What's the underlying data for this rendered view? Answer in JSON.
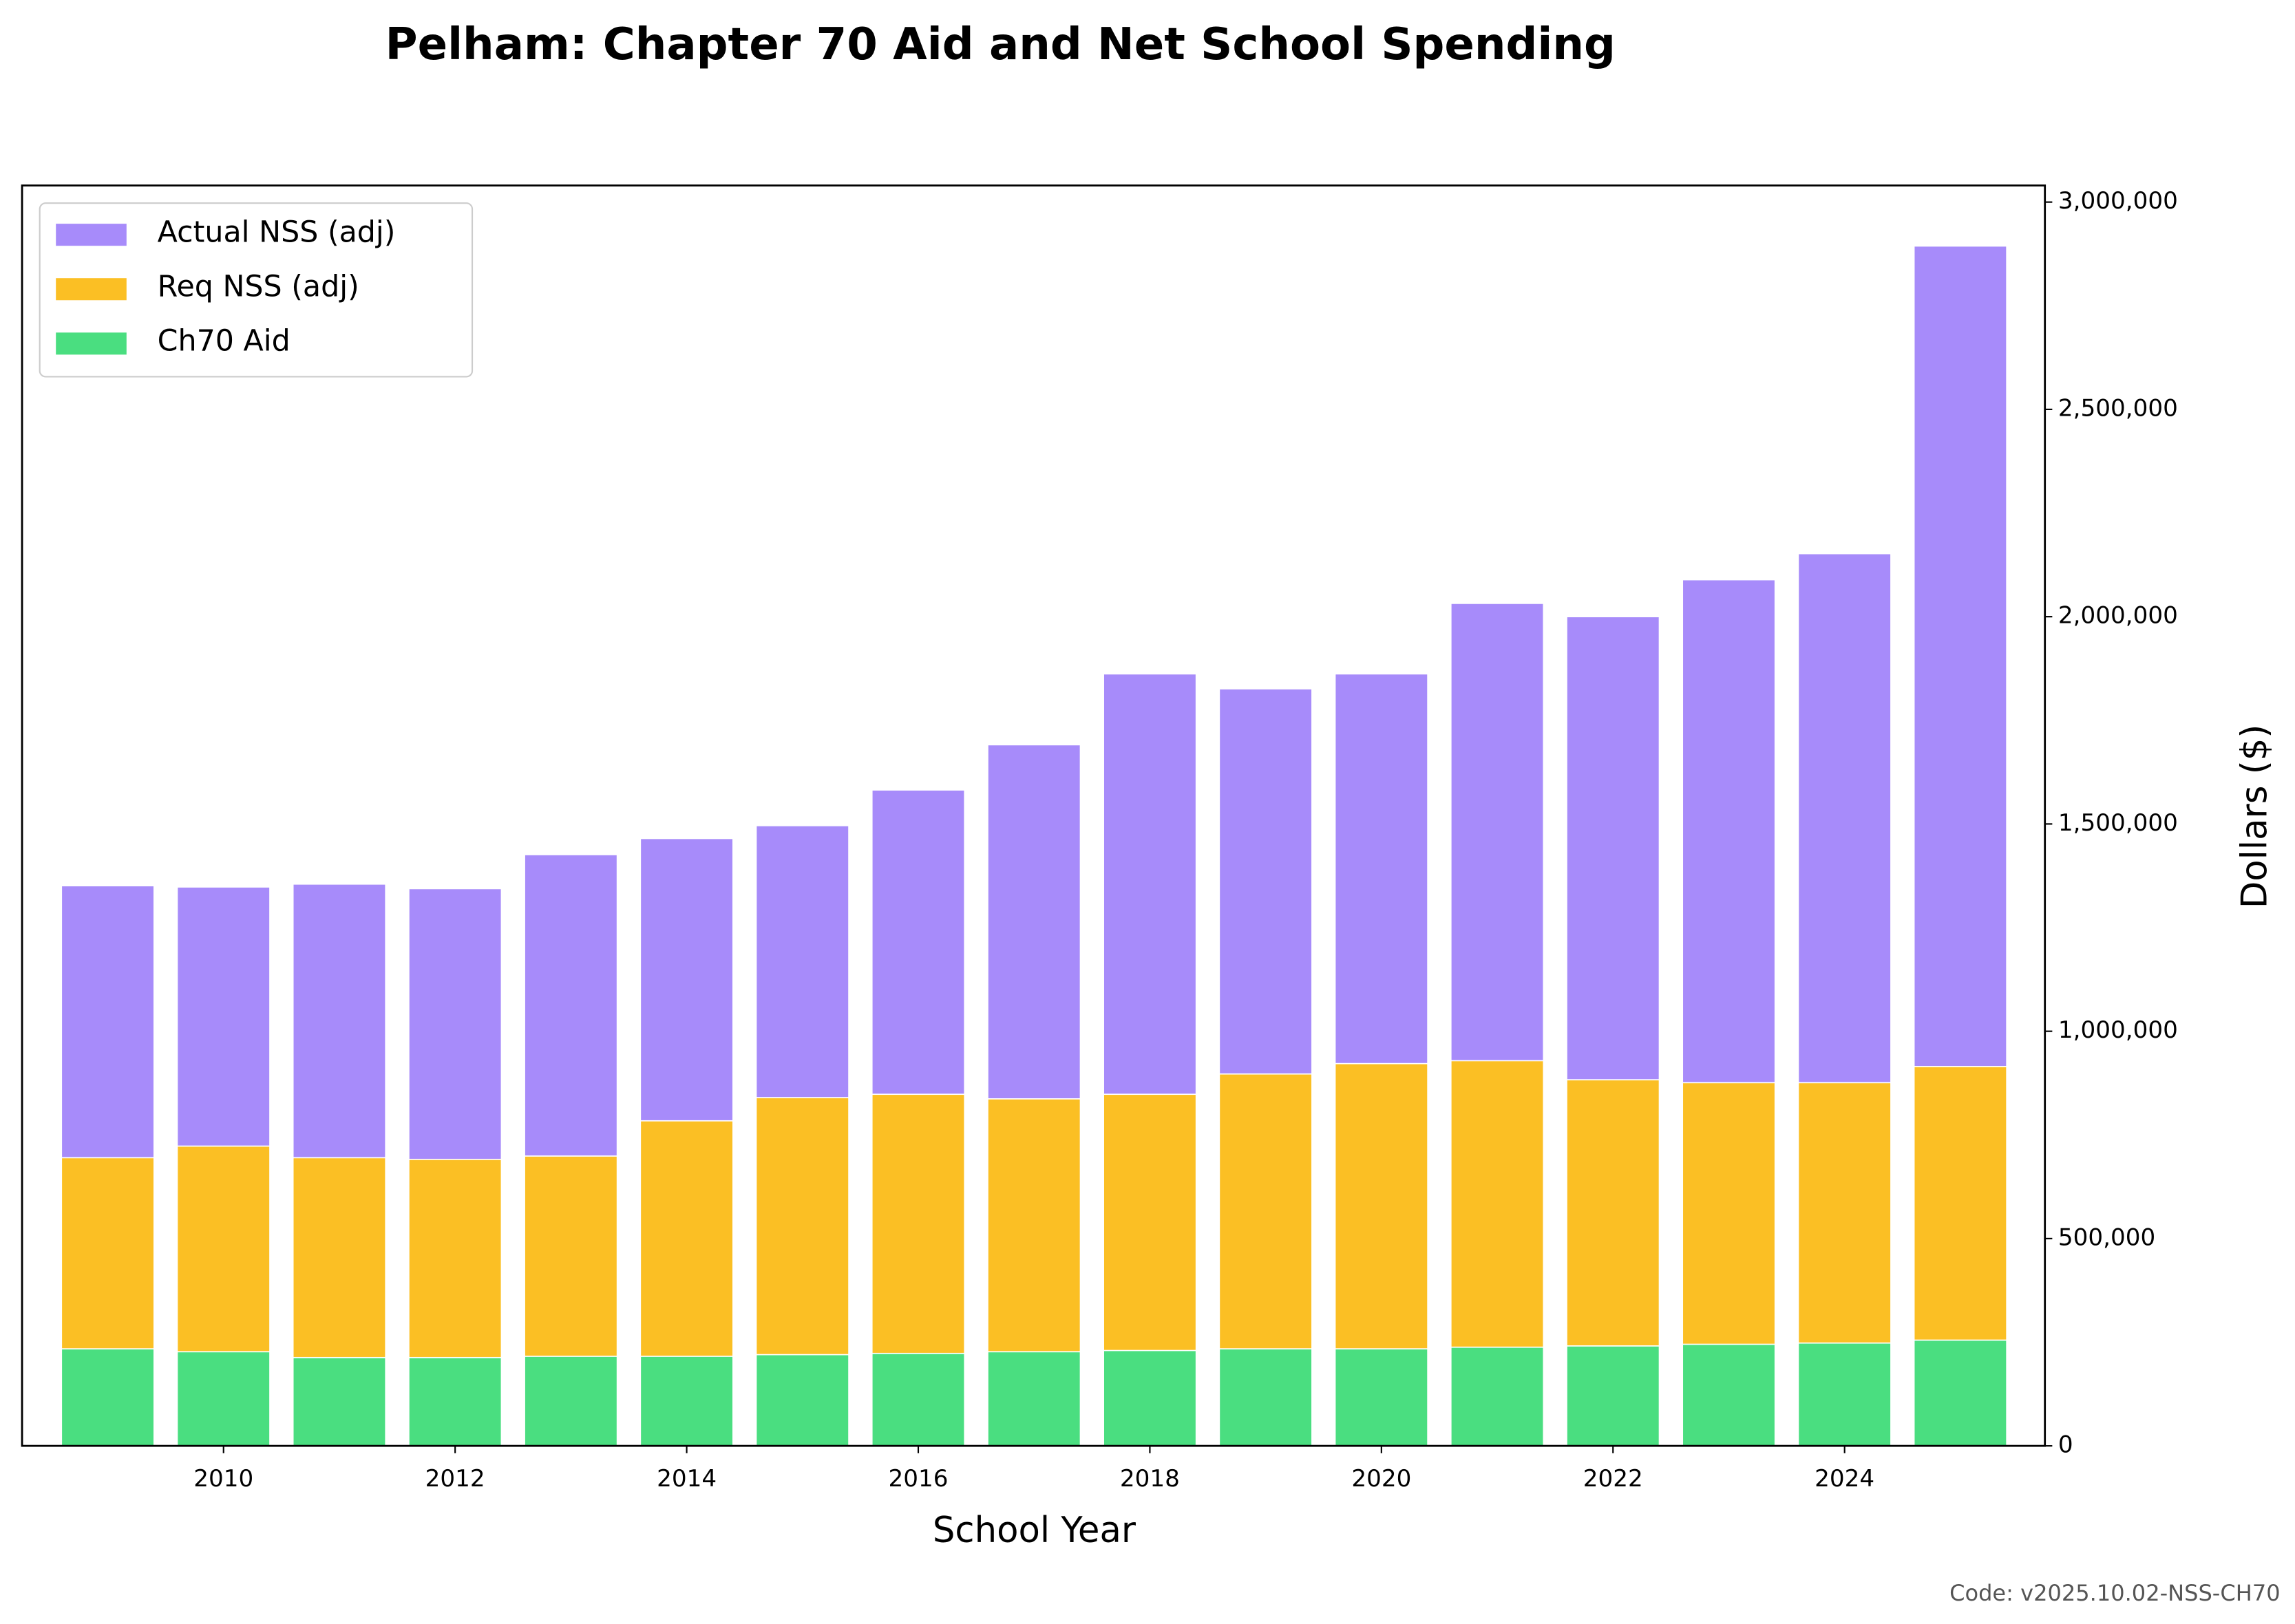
{
  "chart_data": {
    "type": "bar",
    "title": "Pelham: Chapter 70 Aid and Net School Spending",
    "xlabel": "School Year",
    "ylabel": "Dollars ($)",
    "footer": "Code: v2025.10.02-NSS-CH70",
    "x": [
      2009,
      2010,
      2011,
      2012,
      2013,
      2014,
      2015,
      2016,
      2017,
      2018,
      2019,
      2020,
      2021,
      2022,
      2023,
      2024,
      2025
    ],
    "series": [
      {
        "name": "Actual NSS (adj)",
        "color": "#a78bfa",
        "values": [
          1351000,
          1348000,
          1355000,
          1344000,
          1426000,
          1465000,
          1496000,
          1582000,
          1691000,
          1862000,
          1826000,
          1862000,
          2032000,
          2000000,
          2089000,
          2152000,
          2894000
        ]
      },
      {
        "name": "Req NSS (adj)",
        "color": "#fbbf24",
        "values": [
          695000,
          723000,
          695000,
          691000,
          699000,
          784000,
          840000,
          848000,
          837000,
          848000,
          897000,
          922000,
          929000,
          883000,
          876000,
          876000,
          915000
        ]
      },
      {
        "name": "Ch70 Aid",
        "color": "#4ade80",
        "values": [
          234000,
          227000,
          213000,
          213000,
          216000,
          216000,
          220000,
          223000,
          227000,
          230000,
          234000,
          234000,
          238000,
          241000,
          245000,
          248000,
          255000
        ]
      }
    ],
    "bar_width": 0.8,
    "xlim": [
      2008.26,
      2025.73
    ],
    "xticks": [
      2010,
      2012,
      2014,
      2016,
      2018,
      2020,
      2022,
      2024
    ],
    "ylim": [
      0,
      3040000
    ],
    "yticks": [
      0,
      {
        "value": 500000,
        "label": "500,000"
      },
      {
        "value": 1000000,
        "label": "1,000,000"
      },
      {
        "value": 1500000,
        "label": "1,500,000"
      },
      {
        "value": 2000000,
        "label": "2,000,000"
      },
      {
        "value": 2500000,
        "label": "2,500,000"
      },
      {
        "value": 3000000,
        "label": "3,000,000"
      }
    ],
    "y_axis_side": "right",
    "grid": false,
    "legend": "upper left"
  }
}
